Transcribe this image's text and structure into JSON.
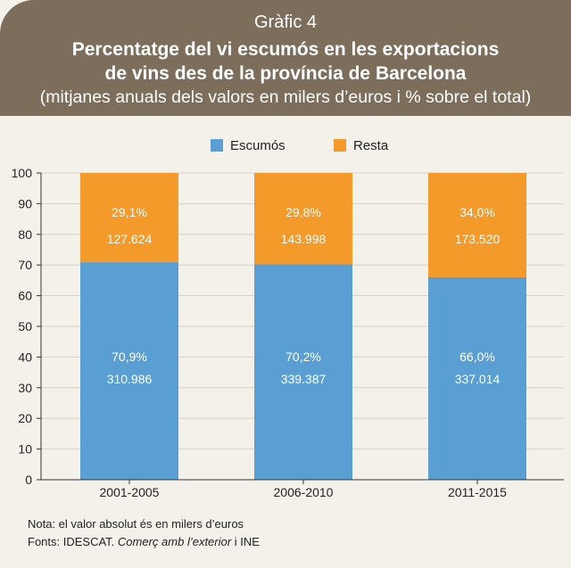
{
  "header": {
    "label": "Gràfic 4",
    "title_line1": "Percentatge del vi escumós en les exportacions",
    "title_line2": "de vins des de la província de Barcelona",
    "subtitle": "(mitjanes anuals dels valors en milers d’euros i % sobre el total)"
  },
  "colors": {
    "header_bg": "#7d6e5c",
    "escumos": "#5a9fd4",
    "resta": "#f39a2a",
    "panel_bg": "#f4f1ea"
  },
  "chart_data": {
    "type": "bar",
    "stacked": true,
    "categories": [
      "2001-2005",
      "2006-2010",
      "2011-2015"
    ],
    "series": [
      {
        "name": "Escumós",
        "values": [
          70.9,
          70.2,
          66.0
        ],
        "pct_labels": [
          "70,9%",
          "70,2%",
          "66,0%"
        ],
        "value_labels": [
          "310.986",
          "339.387",
          "337.014"
        ]
      },
      {
        "name": "Resta",
        "values": [
          29.1,
          29.8,
          34.0
        ],
        "pct_labels": [
          "29,1%",
          "29,8%",
          "34,0%"
        ],
        "value_labels": [
          "127.624",
          "143.998",
          "173.520"
        ]
      }
    ],
    "ylim": [
      0,
      100
    ],
    "yticks": [
      0,
      10,
      20,
      30,
      40,
      50,
      60,
      70,
      80,
      90,
      100
    ],
    "grid": true,
    "legend_position": "top-center"
  },
  "notes": {
    "line1": "Nota: el valor absolut és en milers d’euros",
    "sources_prefix": "Fonts: IDESCAT.",
    "sources_italic": "Comerç amb l’exterior",
    "sources_suffix": "i INE"
  }
}
